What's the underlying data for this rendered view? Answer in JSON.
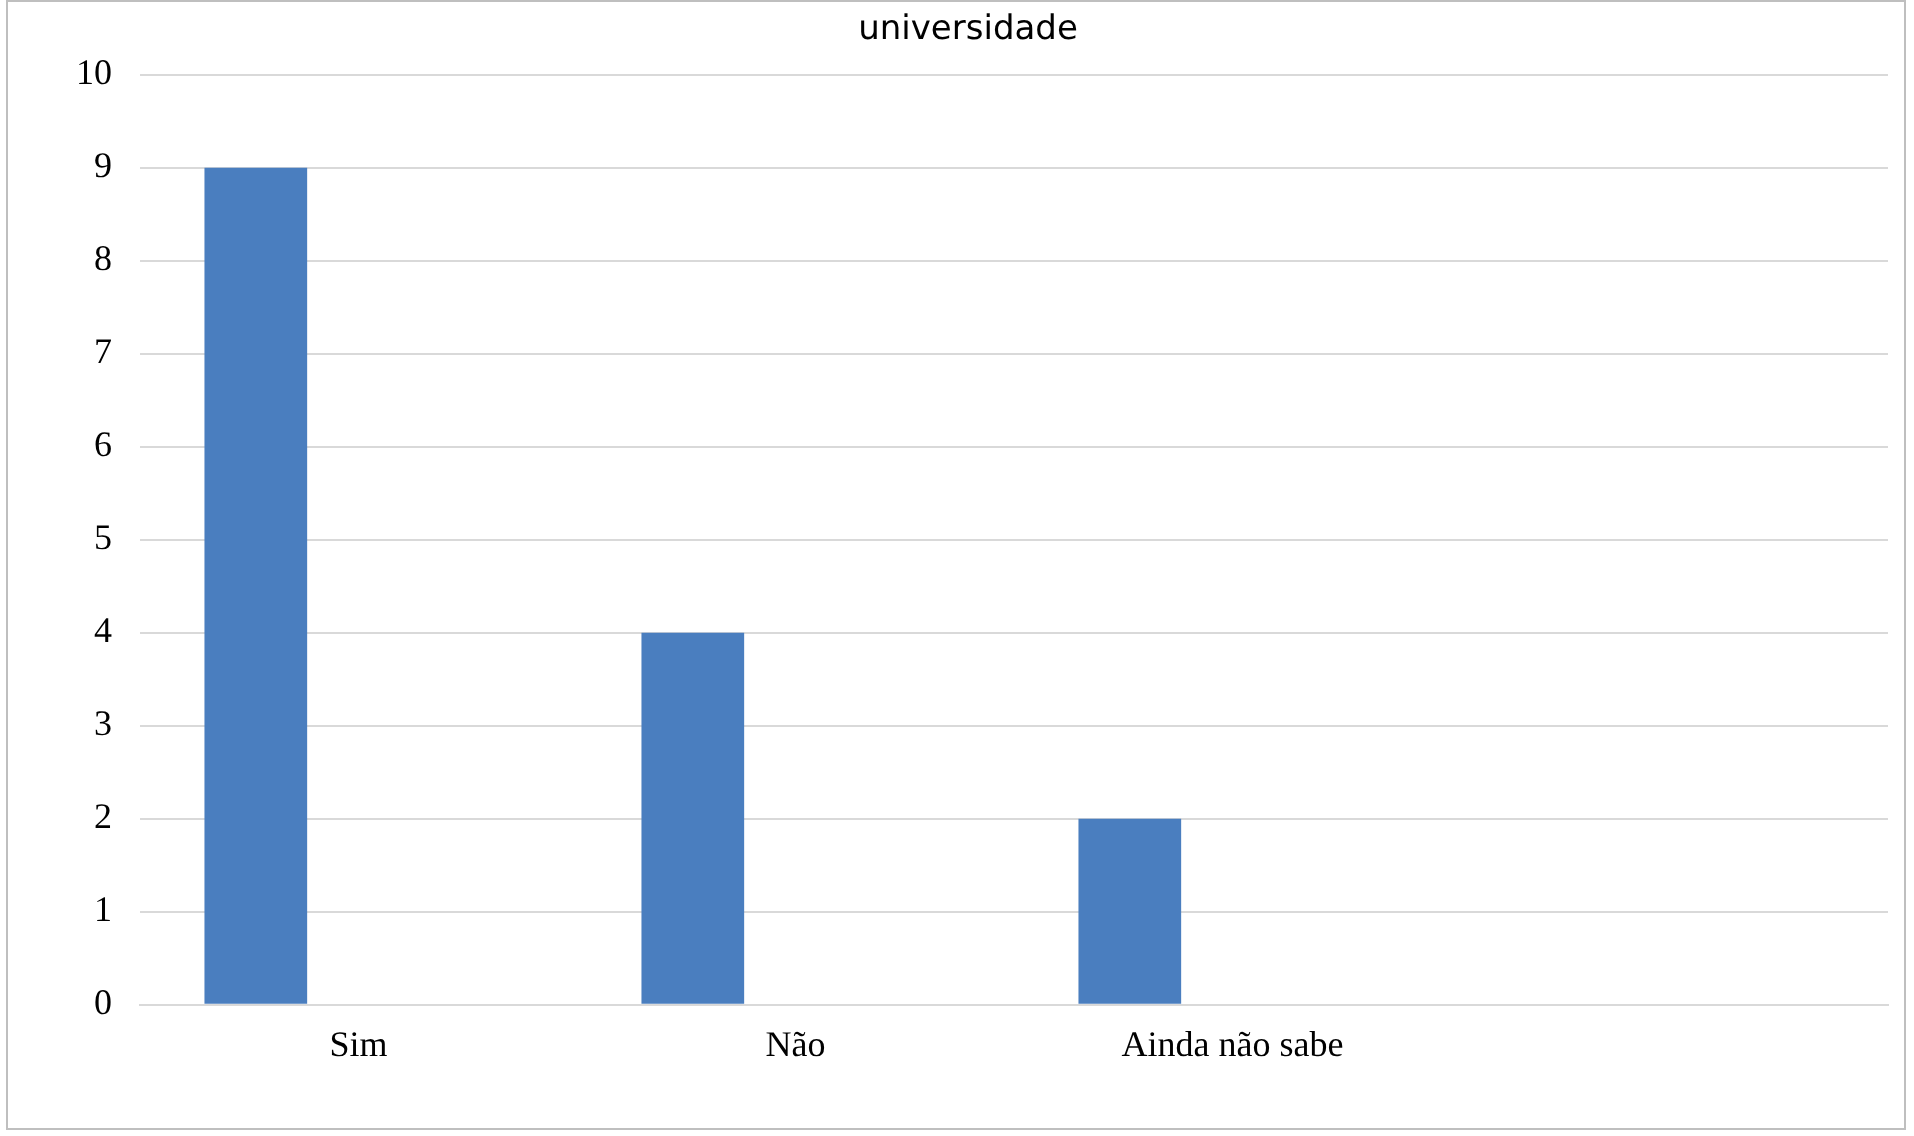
{
  "chart_data": {
    "type": "bar",
    "title": "universidade",
    "categories": [
      "Sim",
      "Não",
      "Ainda não sabe",
      null
    ],
    "series": [
      {
        "color": "#4a7ebf",
        "values": [
          9,
          4,
          2,
          null
        ]
      },
      {
        "color": "#c0504d",
        "values": [
          null,
          null,
          null,
          null
        ]
      }
    ],
    "ylim": [
      0,
      10
    ],
    "yticks": [
      0,
      1,
      2,
      3,
      4,
      5,
      6,
      7,
      8,
      9,
      10
    ],
    "grid": "y",
    "legend": false
  }
}
